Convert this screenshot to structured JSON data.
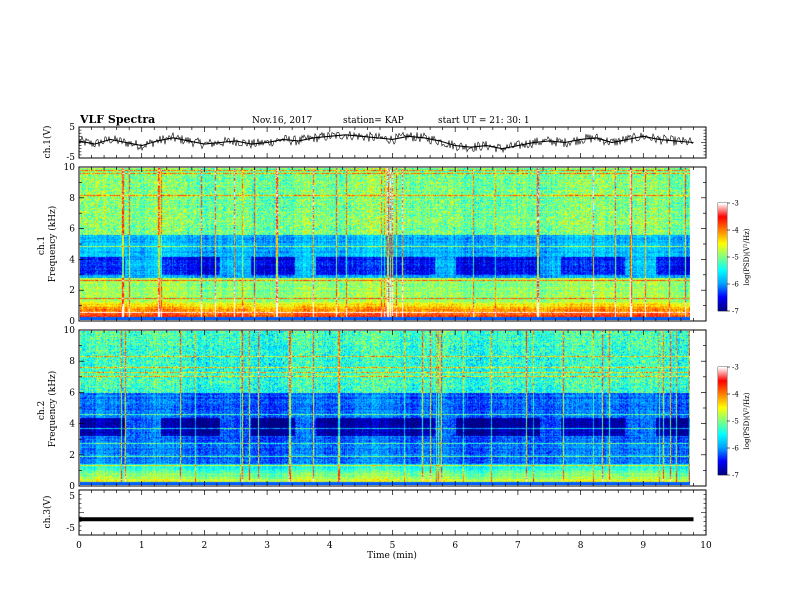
{
  "header": {
    "title": "VLF Spectra",
    "date": "Nov.16, 2017",
    "station": "station= KAP",
    "start_ut": "start  UT =   21: 30: 1"
  },
  "chart_data": [
    {
      "type": "line",
      "panel": "ch1-waveform",
      "ylabel": "ch.1(V)",
      "ylim": [
        -5,
        5
      ],
      "yticks": [
        "5",
        "-5"
      ],
      "xlim": [
        0,
        10
      ],
      "x_end": 9.8,
      "series": [
        {
          "x": [
            0,
            0.25,
            0.5,
            0.75,
            1,
            1.25,
            1.5,
            1.75,
            2,
            2.25,
            2.5,
            2.75,
            3,
            3.25,
            3.5,
            3.75,
            4,
            4.25,
            4.5,
            4.75,
            5,
            5.25,
            5.5,
            5.75,
            6,
            6.25,
            6.5,
            6.75,
            7,
            7.25,
            7.5,
            7.75,
            8,
            8.25,
            8.5,
            8.75,
            9,
            9.25,
            9.5,
            9.8
          ],
          "values": [
            0.5,
            -0.5,
            1,
            0,
            -1,
            0.5,
            1.5,
            0.5,
            -0.5,
            0,
            0.5,
            -0.5,
            0,
            1,
            0.5,
            1.5,
            2,
            2.5,
            2,
            1.5,
            1,
            2,
            1.5,
            0.5,
            -1,
            -1.5,
            -1,
            -2,
            -1,
            0,
            0.5,
            0,
            1,
            1.5,
            0,
            1,
            2,
            1,
            0.5,
            0
          ]
        }
      ]
    },
    {
      "type": "heatmap",
      "panel": "ch1-spectrogram",
      "ylabel": "ch.1\nFrequency (kHz)",
      "xlim": [
        0,
        10
      ],
      "ylim": [
        0,
        10
      ],
      "yticks": [
        "0",
        "2",
        "4",
        "6",
        "8",
        "10"
      ],
      "colorbar": {
        "label": "log(PSD)(V²/Hz)",
        "range": [
          -7,
          -3
        ],
        "ticks": [
          "-3",
          "-4",
          "-5",
          "-6",
          "-7"
        ]
      }
    },
    {
      "type": "heatmap",
      "panel": "ch2-spectrogram",
      "ylabel": "ch.2\nFrequency (kHz)",
      "xlim": [
        0,
        10
      ],
      "ylim": [
        0,
        10
      ],
      "yticks": [
        "0",
        "2",
        "4",
        "6",
        "8",
        "10"
      ],
      "colorbar": {
        "label": "log(PSD)(V²/Hz)",
        "range": [
          -7,
          -3
        ],
        "ticks": [
          "-3",
          "-4",
          "-5",
          "-6",
          "-7"
        ]
      }
    },
    {
      "type": "line",
      "panel": "ch3-waveform",
      "ylabel": "ch.3(V)",
      "ylim": [
        -5,
        5
      ],
      "yticks": [
        "5",
        "-5"
      ],
      "xlim": [
        0,
        10
      ],
      "x_end": 9.8,
      "series": [
        {
          "x": [
            0,
            9.8
          ],
          "values": [
            -1.5,
            -1.5
          ]
        }
      ]
    }
  ],
  "xaxis": {
    "label": "Time (min)",
    "ticks": [
      "0",
      "1",
      "2",
      "3",
      "4",
      "5",
      "6",
      "7",
      "8",
      "9",
      "10"
    ]
  },
  "colors": {
    "line": "#000000",
    "colormap": [
      "#000080",
      "#0000ff",
      "#00a0ff",
      "#00ffff",
      "#80ff80",
      "#ffff00",
      "#ff8000",
      "#ff0000",
      "#ffffff"
    ]
  }
}
